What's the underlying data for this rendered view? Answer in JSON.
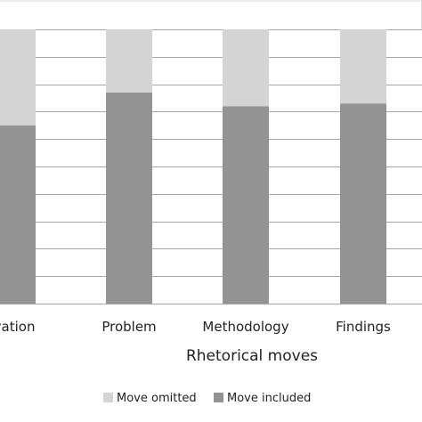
{
  "chart_data": {
    "type": "bar",
    "stacked": true,
    "categories": [
      "ivation",
      "Problem",
      "Methodology",
      "Findings"
    ],
    "series": [
      {
        "name": "Move included",
        "values": [
          65,
          77,
          72,
          73
        ],
        "color": "#939393"
      },
      {
        "name": "Move omitted",
        "values": [
          35,
          23,
          28,
          27
        ],
        "color": "#d4d4d4"
      }
    ],
    "title": "",
    "xlabel": "Rhetorical moves",
    "ylabel": "",
    "ylim": [
      0,
      100
    ],
    "grid": true,
    "legend_position": "bottom"
  }
}
